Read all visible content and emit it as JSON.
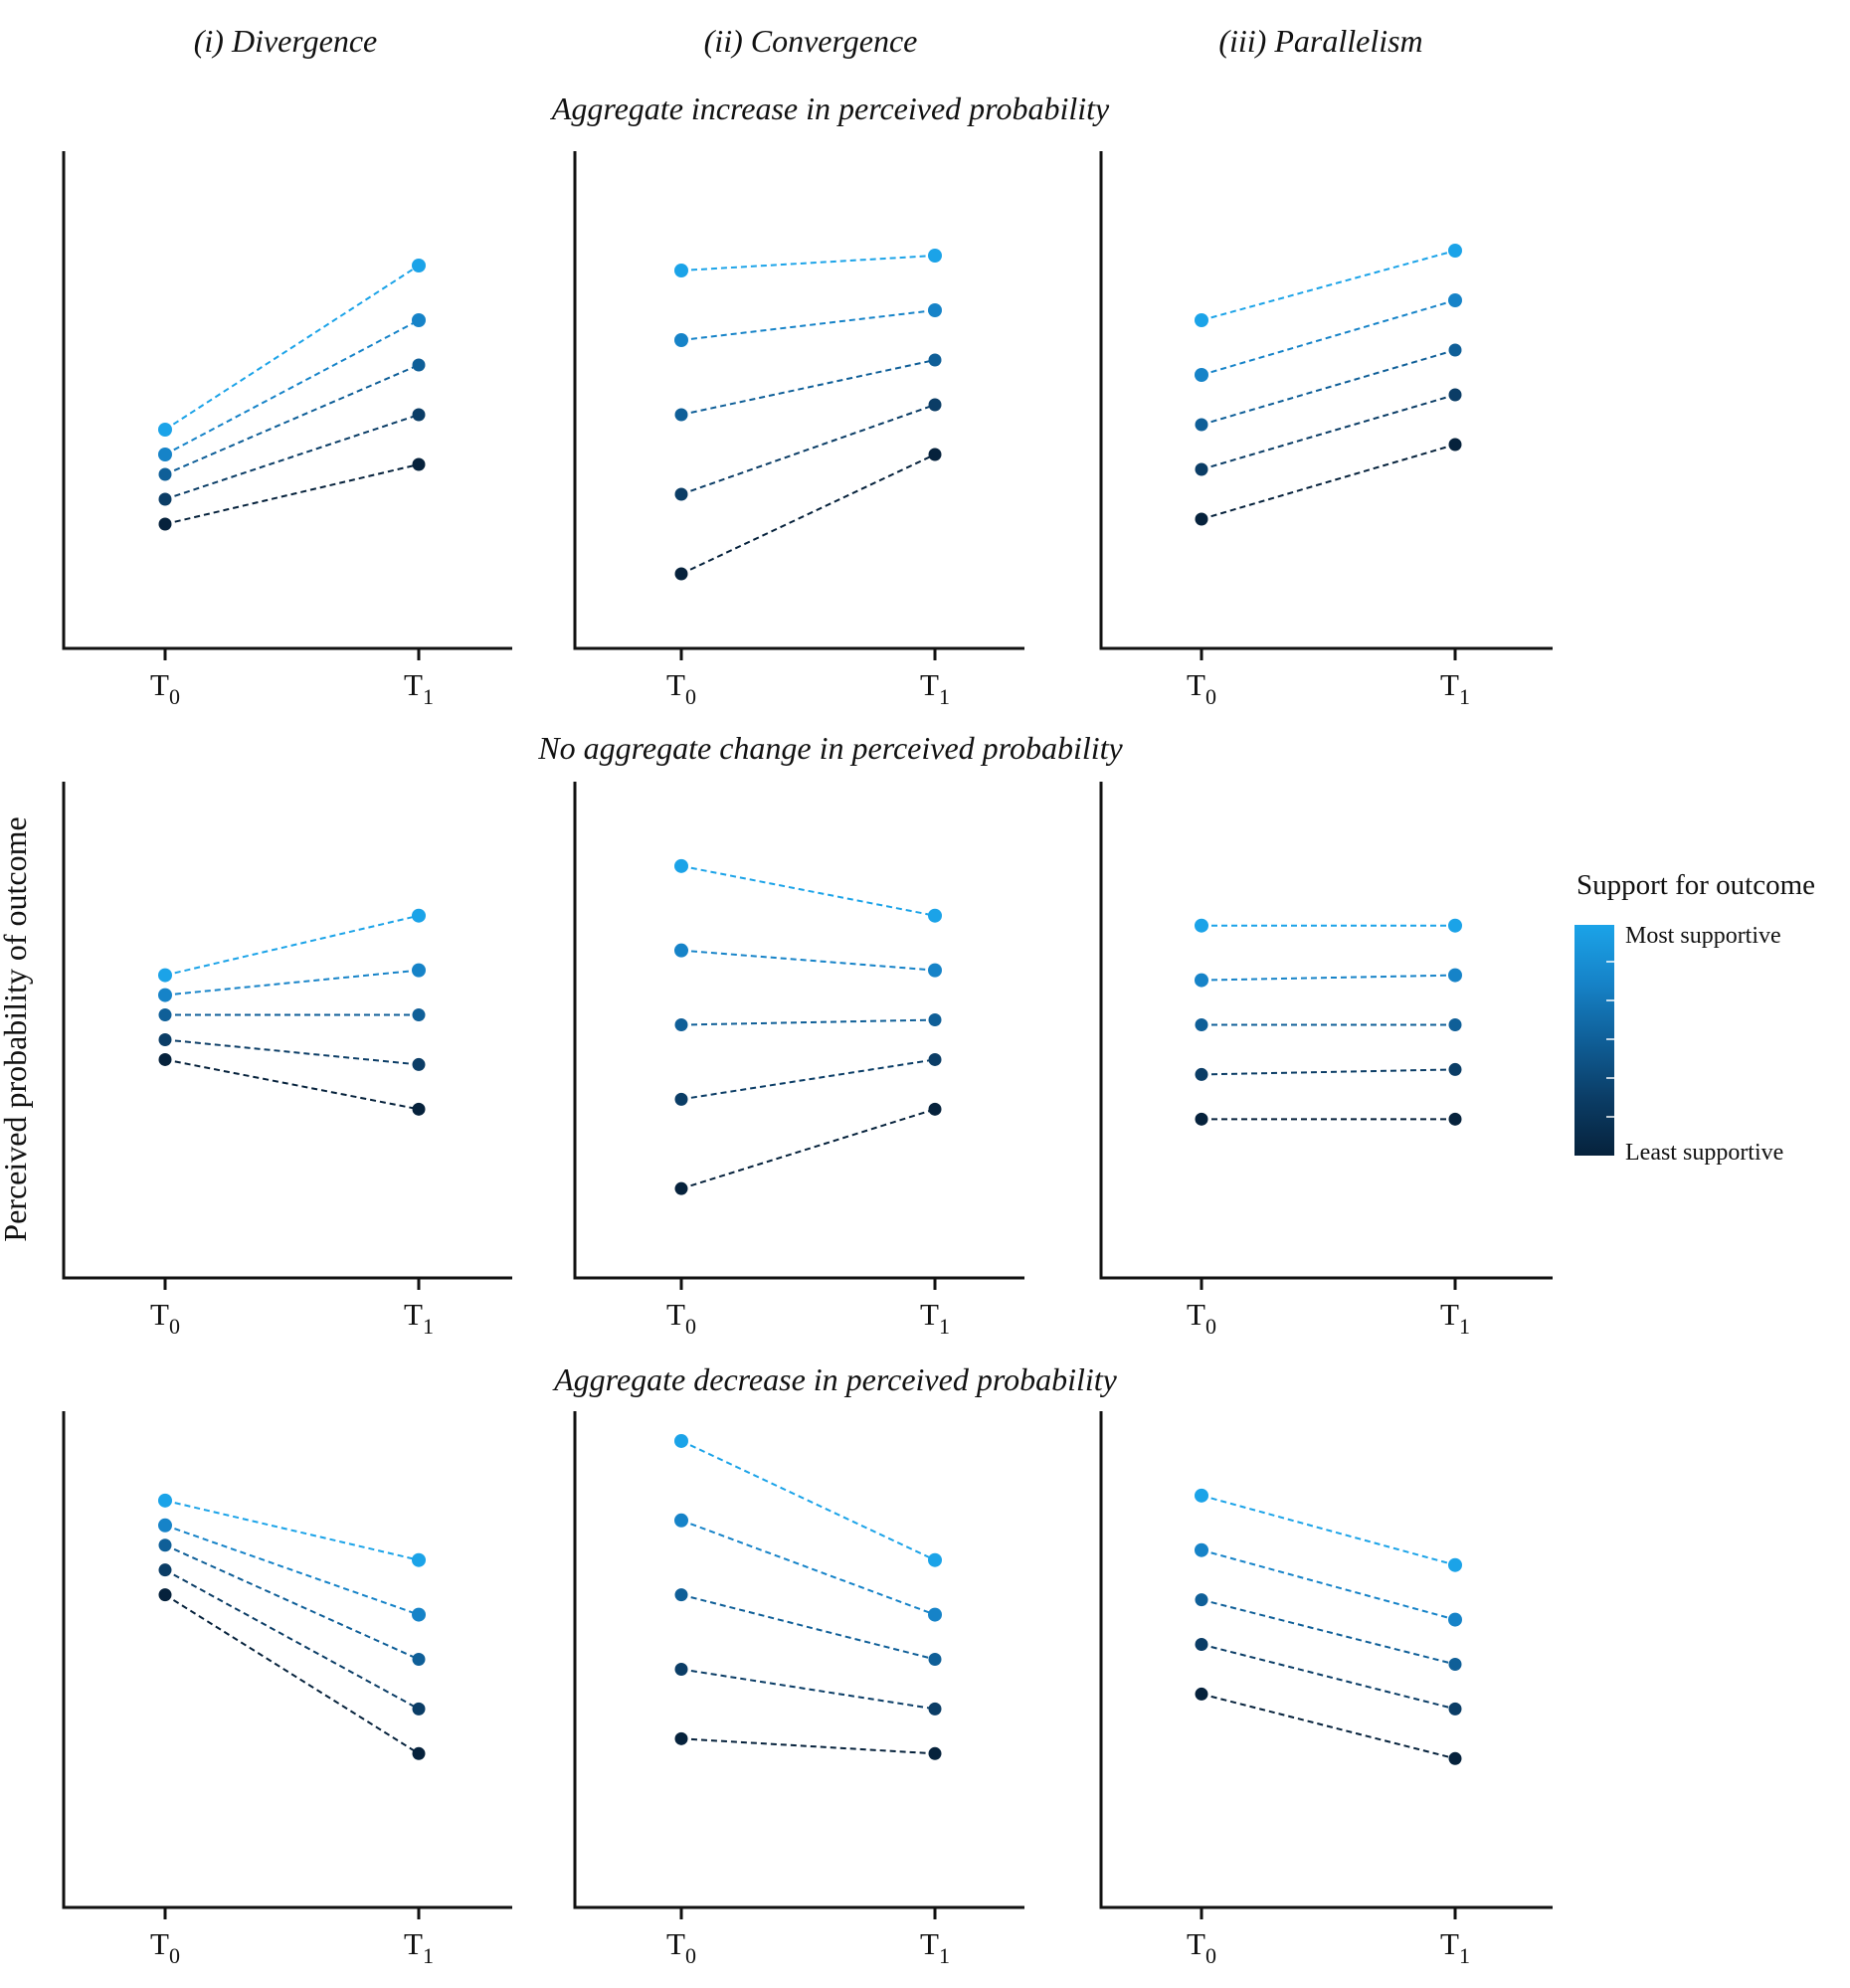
{
  "figure": {
    "column_titles": [
      "(i) Divergence",
      "(ii) Convergence",
      "(iii) Parallelism"
    ],
    "row_titles": [
      "Aggregate increase in perceived probability",
      "No aggregate change in perceived probability",
      "Aggregate decrease in perceived probability"
    ],
    "ylabel": "Perceived probability of outcome",
    "x_tick_main": "T",
    "x_tick_subs": [
      "0",
      "1"
    ],
    "legend": {
      "title": "Support for outcome",
      "top_label": "Most supportive",
      "bottom_label": "Least supportive",
      "colors": [
        "#1ba3e8",
        "#1683c8",
        "#0f5f98",
        "#0b3d66",
        "#06223c"
      ]
    }
  },
  "chart_data": [
    {
      "type": "line",
      "panel": "row1-col1",
      "categories": [
        "T0",
        "T1"
      ],
      "ylim": [
        0,
        100
      ],
      "grid": false,
      "series": [
        {
          "values": [
            44,
            77
          ]
        },
        {
          "values": [
            39,
            66
          ]
        },
        {
          "values": [
            35,
            57
          ]
        },
        {
          "values": [
            30,
            47
          ]
        },
        {
          "values": [
            25,
            37
          ]
        }
      ]
    },
    {
      "type": "line",
      "panel": "row1-col2",
      "categories": [
        "T0",
        "T1"
      ],
      "ylim": [
        0,
        100
      ],
      "grid": false,
      "series": [
        {
          "values": [
            76,
            79
          ]
        },
        {
          "values": [
            62,
            68
          ]
        },
        {
          "values": [
            47,
            58
          ]
        },
        {
          "values": [
            31,
            49
          ]
        },
        {
          "values": [
            15,
            39
          ]
        }
      ]
    },
    {
      "type": "line",
      "panel": "row1-col3",
      "categories": [
        "T0",
        "T1"
      ],
      "ylim": [
        0,
        100
      ],
      "grid": false,
      "series": [
        {
          "values": [
            66,
            80
          ]
        },
        {
          "values": [
            55,
            70
          ]
        },
        {
          "values": [
            45,
            60
          ]
        },
        {
          "values": [
            36,
            51
          ]
        },
        {
          "values": [
            26,
            41
          ]
        }
      ]
    },
    {
      "type": "line",
      "panel": "row2-col1",
      "categories": [
        "T0",
        "T1"
      ],
      "ylim": [
        0,
        100
      ],
      "grid": false,
      "series": [
        {
          "values": [
            61,
            73
          ]
        },
        {
          "values": [
            57,
            62
          ]
        },
        {
          "values": [
            53,
            53
          ]
        },
        {
          "values": [
            48,
            43
          ]
        },
        {
          "values": [
            44,
            34
          ]
        }
      ]
    },
    {
      "type": "line",
      "panel": "row2-col2",
      "categories": [
        "T0",
        "T1"
      ],
      "ylim": [
        0,
        100
      ],
      "grid": false,
      "series": [
        {
          "values": [
            83,
            73
          ]
        },
        {
          "values": [
            66,
            62
          ]
        },
        {
          "values": [
            51,
            52
          ]
        },
        {
          "values": [
            36,
            44
          ]
        },
        {
          "values": [
            18,
            34
          ]
        }
      ]
    },
    {
      "type": "line",
      "panel": "row2-col3",
      "categories": [
        "T0",
        "T1"
      ],
      "ylim": [
        0,
        100
      ],
      "grid": false,
      "series": [
        {
          "values": [
            71,
            71
          ]
        },
        {
          "values": [
            60,
            61
          ]
        },
        {
          "values": [
            51,
            51
          ]
        },
        {
          "values": [
            41,
            42
          ]
        },
        {
          "values": [
            32,
            32
          ]
        }
      ]
    },
    {
      "type": "line",
      "panel": "row3-col1",
      "categories": [
        "T0",
        "T1"
      ],
      "ylim": [
        0,
        100
      ],
      "grid": false,
      "series": [
        {
          "values": [
            82,
            70
          ]
        },
        {
          "values": [
            77,
            59
          ]
        },
        {
          "values": [
            73,
            50
          ]
        },
        {
          "values": [
            68,
            40
          ]
        },
        {
          "values": [
            63,
            31
          ]
        }
      ]
    },
    {
      "type": "line",
      "panel": "row3-col2",
      "categories": [
        "T0",
        "T1"
      ],
      "ylim": [
        0,
        100
      ],
      "grid": false,
      "series": [
        {
          "values": [
            94,
            70
          ]
        },
        {
          "values": [
            78,
            59
          ]
        },
        {
          "values": [
            63,
            50
          ]
        },
        {
          "values": [
            48,
            40
          ]
        },
        {
          "values": [
            34,
            31
          ]
        }
      ]
    },
    {
      "type": "line",
      "panel": "row3-col3",
      "categories": [
        "T0",
        "T1"
      ],
      "ylim": [
        0,
        100
      ],
      "grid": false,
      "series": [
        {
          "values": [
            83,
            69
          ]
        },
        {
          "values": [
            72,
            58
          ]
        },
        {
          "values": [
            62,
            49
          ]
        },
        {
          "values": [
            53,
            40
          ]
        },
        {
          "values": [
            43,
            30
          ]
        }
      ]
    }
  ]
}
